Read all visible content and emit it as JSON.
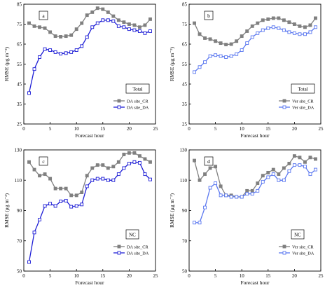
{
  "chart_data": [
    {
      "type": "line",
      "panel_tag": "a",
      "region_label": "Total",
      "xlabel": "Forecast hour",
      "ylabel": "RMSE (μg m⁻³)",
      "xlim": [
        0,
        25
      ],
      "ylim": [
        25,
        85
      ],
      "xticks": [
        0,
        5,
        10,
        15,
        20,
        25
      ],
      "yticks": [
        25,
        35,
        45,
        55,
        65,
        75,
        85
      ],
      "legend_position": "bottom-right",
      "x": [
        1,
        2,
        3,
        4,
        5,
        6,
        7,
        8,
        9,
        10,
        11,
        12,
        13,
        14,
        15,
        16,
        17,
        18,
        19,
        20,
        21,
        22,
        23,
        24
      ],
      "series": [
        {
          "name": "DA site_CR",
          "color": "#808080",
          "marker": "square-filled",
          "values": [
            75.5,
            74,
            73.5,
            73,
            71,
            69,
            68.7,
            69,
            69.5,
            72.5,
            75.5,
            79.5,
            81,
            83,
            82.5,
            81,
            79,
            77,
            76,
            75,
            74.5,
            73.5,
            74.5,
            77.5
          ]
        },
        {
          "name": "DA site_DA",
          "color": "#1f1fd6",
          "marker": "square-open",
          "values": [
            40.5,
            52.5,
            58.5,
            62.5,
            62,
            61,
            60.2,
            60.5,
            61,
            62,
            64,
            68.5,
            73.5,
            75.5,
            77,
            77,
            76.5,
            74,
            73.5,
            72.5,
            72,
            71.5,
            70.5,
            71.5
          ]
        }
      ]
    },
    {
      "type": "line",
      "panel_tag": "b",
      "region_label": "Total",
      "xlabel": "Forecast hour",
      "ylabel": "RMSE (μg m⁻³)",
      "xlim": [
        0,
        25
      ],
      "ylim": [
        25,
        85
      ],
      "xticks": [
        0,
        5,
        10,
        15,
        20,
        25
      ],
      "yticks": [
        25,
        35,
        45,
        55,
        65,
        75,
        85
      ],
      "legend_position": "bottom-right",
      "x": [
        1,
        2,
        3,
        4,
        5,
        6,
        7,
        8,
        9,
        10,
        11,
        12,
        13,
        14,
        15,
        16,
        17,
        18,
        19,
        20,
        21,
        22,
        23,
        24
      ],
      "series": [
        {
          "name": "Ver site_CR",
          "color": "#808080",
          "marker": "square-filled",
          "values": [
            75.5,
            70,
            68,
            67.5,
            66.5,
            65.5,
            64.8,
            65,
            66.5,
            69,
            71.5,
            74,
            75.5,
            77,
            77.5,
            78,
            78,
            77,
            76,
            75,
            74,
            73.5,
            74.5,
            78
          ]
        },
        {
          "name": "Ver site_DA",
          "color": "#5b78f0",
          "marker": "square-open",
          "values": [
            51,
            53.5,
            56,
            59,
            59.5,
            59,
            58.5,
            59,
            60,
            62,
            65.5,
            68.5,
            70.5,
            72,
            73,
            73.5,
            73,
            72,
            71,
            70.5,
            70,
            70,
            71,
            73.5
          ]
        }
      ]
    },
    {
      "type": "line",
      "panel_tag": "c",
      "region_label": "NC",
      "xlabel": "Forecast hour",
      "ylabel": "RMSE (μg m⁻³)",
      "xlim": [
        0,
        25
      ],
      "ylim": [
        50,
        130
      ],
      "xticks": [
        0,
        5,
        10,
        15,
        20,
        25
      ],
      "yticks": [
        50,
        70,
        90,
        110,
        130
      ],
      "legend_position": "bottom-right",
      "x": [
        1,
        2,
        3,
        4,
        5,
        6,
        7,
        8,
        9,
        10,
        11,
        12,
        13,
        14,
        15,
        16,
        17,
        18,
        19,
        20,
        21,
        22,
        23,
        24
      ],
      "series": [
        {
          "name": "DA site_CR",
          "color": "#808080",
          "marker": "square-filled",
          "values": [
            122,
            117,
            113,
            114,
            111,
            104.5,
            104.5,
            104.5,
            100,
            100,
            102,
            113,
            118,
            120,
            120,
            118,
            119,
            122,
            127,
            128,
            128,
            126,
            124,
            122
          ]
        },
        {
          "name": "DA site_DA",
          "color": "#1f1fd6",
          "marker": "square-open",
          "values": [
            56,
            75.5,
            84,
            93,
            94.5,
            93,
            96,
            96.5,
            92.5,
            93,
            94,
            106,
            110,
            111,
            111,
            110,
            110,
            114,
            118,
            121,
            122,
            121.5,
            114,
            110.5
          ]
        }
      ]
    },
    {
      "type": "line",
      "panel_tag": "d",
      "region_label": "NC",
      "xlabel": "Forecast hour",
      "ylabel": "RMSE (μg m⁻³)",
      "xlim": [
        0,
        25
      ],
      "ylim": [
        50,
        130
      ],
      "xticks": [
        0,
        5,
        10,
        15,
        20,
        25
      ],
      "yticks": [
        50,
        70,
        90,
        110,
        130
      ],
      "legend_position": "bottom-right",
      "x": [
        1,
        2,
        3,
        4,
        5,
        6,
        7,
        8,
        9,
        10,
        11,
        12,
        13,
        14,
        15,
        16,
        17,
        18,
        19,
        20,
        21,
        22,
        23,
        24
      ],
      "series": [
        {
          "name": "Ver site_CR",
          "color": "#808080",
          "marker": "square-filled",
          "values": [
            123,
            110,
            114,
            118,
            119,
            106,
            100,
            100,
            99,
            99,
            103,
            103,
            108,
            113,
            115,
            117,
            114,
            118,
            121,
            126,
            125,
            122,
            125,
            124
          ]
        },
        {
          "name": "Ver site_DA",
          "color": "#5b78f0",
          "marker": "square-open",
          "values": [
            82,
            82,
            92,
            105,
            108,
            100,
            100,
            99,
            99,
            99,
            101,
            101,
            103,
            109,
            112,
            114,
            110,
            110,
            116,
            120,
            120,
            119,
            114,
            117
          ]
        }
      ]
    }
  ]
}
